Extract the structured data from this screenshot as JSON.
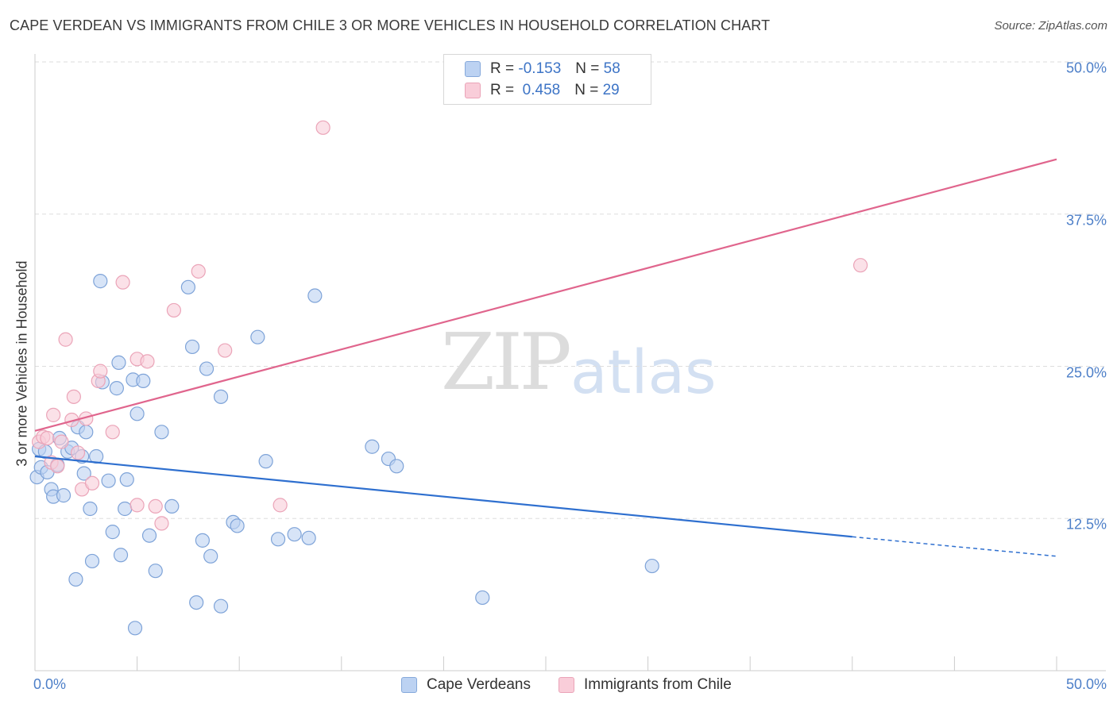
{
  "header": {
    "title": "CAPE VERDEAN VS IMMIGRANTS FROM CHILE 3 OR MORE VEHICLES IN HOUSEHOLD CORRELATION CHART",
    "source": "Source: ZipAtlas.com"
  },
  "watermark": {
    "zip": "ZIP",
    "atlas": "atlas"
  },
  "legend": {
    "series1": {
      "r_label": "R =",
      "r_value": "-0.153",
      "n_label": "N =",
      "n_value": "58"
    },
    "series2": {
      "r_label": "R =",
      "r_value": "0.458",
      "n_label": "N =",
      "n_value": "29"
    }
  },
  "colors": {
    "blue_fill": "#bcd2f2",
    "blue_stroke": "#7ea3d8",
    "blue_line": "#2e6fcf",
    "pink_fill": "#f9cdd9",
    "pink_stroke": "#eba4b8",
    "pink_line": "#e0658d",
    "grid": "#dddddd",
    "tick_text": "#4d7fc8"
  },
  "chart_data": {
    "type": "scatter",
    "title": "CAPE VERDEAN VS IMMIGRANTS FROM CHILE 3 OR MORE VEHICLES IN HOUSEHOLD CORRELATION CHART",
    "xlabel": "",
    "ylabel": "3 or more Vehicles in Household",
    "xlim": [
      0,
      50
    ],
    "ylim": [
      0,
      50
    ],
    "x_tick_labels": [
      "0.0%",
      "50.0%"
    ],
    "y_ticks": [
      12.5,
      25.0,
      37.5,
      50.0
    ],
    "y_tick_labels": [
      "12.5%",
      "25.0%",
      "37.5%",
      "50.0%"
    ],
    "grid": true,
    "legend_position": "top-center",
    "series": [
      {
        "name": "Cape Verdeans",
        "color": "#bcd2f2",
        "trend": {
          "x0": 0,
          "y0": 17.6,
          "x1": 40,
          "y1": 11.0,
          "dash_to_x": 50,
          "dash_to_y": 9.4
        },
        "points": [
          [
            0.1,
            15.9
          ],
          [
            0.2,
            18.2
          ],
          [
            0.3,
            16.7
          ],
          [
            0.5,
            18.0
          ],
          [
            0.6,
            16.3
          ],
          [
            0.8,
            14.9
          ],
          [
            0.9,
            14.3
          ],
          [
            1.1,
            16.9
          ],
          [
            1.2,
            19.1
          ],
          [
            1.4,
            14.4
          ],
          [
            1.6,
            18.0
          ],
          [
            1.8,
            18.3
          ],
          [
            2.0,
            7.5
          ],
          [
            2.1,
            20.0
          ],
          [
            2.3,
            17.6
          ],
          [
            2.4,
            16.2
          ],
          [
            2.5,
            19.6
          ],
          [
            2.7,
            13.3
          ],
          [
            2.8,
            9.0
          ],
          [
            3.0,
            17.6
          ],
          [
            3.2,
            32.0
          ],
          [
            3.3,
            23.7
          ],
          [
            3.6,
            15.6
          ],
          [
            3.8,
            11.4
          ],
          [
            4.0,
            23.2
          ],
          [
            4.1,
            25.3
          ],
          [
            4.2,
            9.5
          ],
          [
            4.4,
            13.3
          ],
          [
            4.5,
            15.7
          ],
          [
            4.8,
            23.9
          ],
          [
            4.9,
            3.5
          ],
          [
            5.0,
            21.1
          ],
          [
            5.3,
            23.8
          ],
          [
            5.6,
            11.1
          ],
          [
            5.9,
            8.2
          ],
          [
            6.2,
            19.6
          ],
          [
            6.7,
            13.5
          ],
          [
            7.5,
            31.5
          ],
          [
            7.7,
            26.6
          ],
          [
            7.9,
            5.6
          ],
          [
            8.2,
            10.7
          ],
          [
            8.4,
            24.8
          ],
          [
            8.6,
            9.4
          ],
          [
            9.1,
            22.5
          ],
          [
            9.1,
            5.3
          ],
          [
            9.7,
            12.2
          ],
          [
            9.9,
            11.9
          ],
          [
            10.9,
            27.4
          ],
          [
            11.3,
            17.2
          ],
          [
            11.9,
            10.8
          ],
          [
            12.7,
            11.2
          ],
          [
            13.4,
            10.9
          ],
          [
            13.7,
            30.8
          ],
          [
            16.5,
            18.4
          ],
          [
            17.3,
            17.4
          ],
          [
            17.7,
            16.8
          ],
          [
            21.9,
            6.0
          ],
          [
            30.2,
            8.6
          ]
        ]
      },
      {
        "name": "Immigrants from Chile",
        "color": "#f9cdd9",
        "trend": {
          "x0": 0,
          "y0": 19.7,
          "x1": 50,
          "y1": 42.0
        },
        "points": [
          [
            0.2,
            18.8
          ],
          [
            0.4,
            19.2
          ],
          [
            0.6,
            19.1
          ],
          [
            0.8,
            17.1
          ],
          [
            0.9,
            21.0
          ],
          [
            1.1,
            16.8
          ],
          [
            1.3,
            18.8
          ],
          [
            1.5,
            27.2
          ],
          [
            1.8,
            20.6
          ],
          [
            1.9,
            22.5
          ],
          [
            2.1,
            17.9
          ],
          [
            2.3,
            14.9
          ],
          [
            2.5,
            20.7
          ],
          [
            2.8,
            15.4
          ],
          [
            3.1,
            23.8
          ],
          [
            3.2,
            24.6
          ],
          [
            3.8,
            19.6
          ],
          [
            4.3,
            31.9
          ],
          [
            5.0,
            25.6
          ],
          [
            5.0,
            13.6
          ],
          [
            5.5,
            25.4
          ],
          [
            5.9,
            13.5
          ],
          [
            6.2,
            12.1
          ],
          [
            6.8,
            29.6
          ],
          [
            8.0,
            32.8
          ],
          [
            9.3,
            26.3
          ],
          [
            12.0,
            13.6
          ],
          [
            14.1,
            44.6
          ],
          [
            40.4,
            33.3
          ]
        ]
      }
    ]
  }
}
